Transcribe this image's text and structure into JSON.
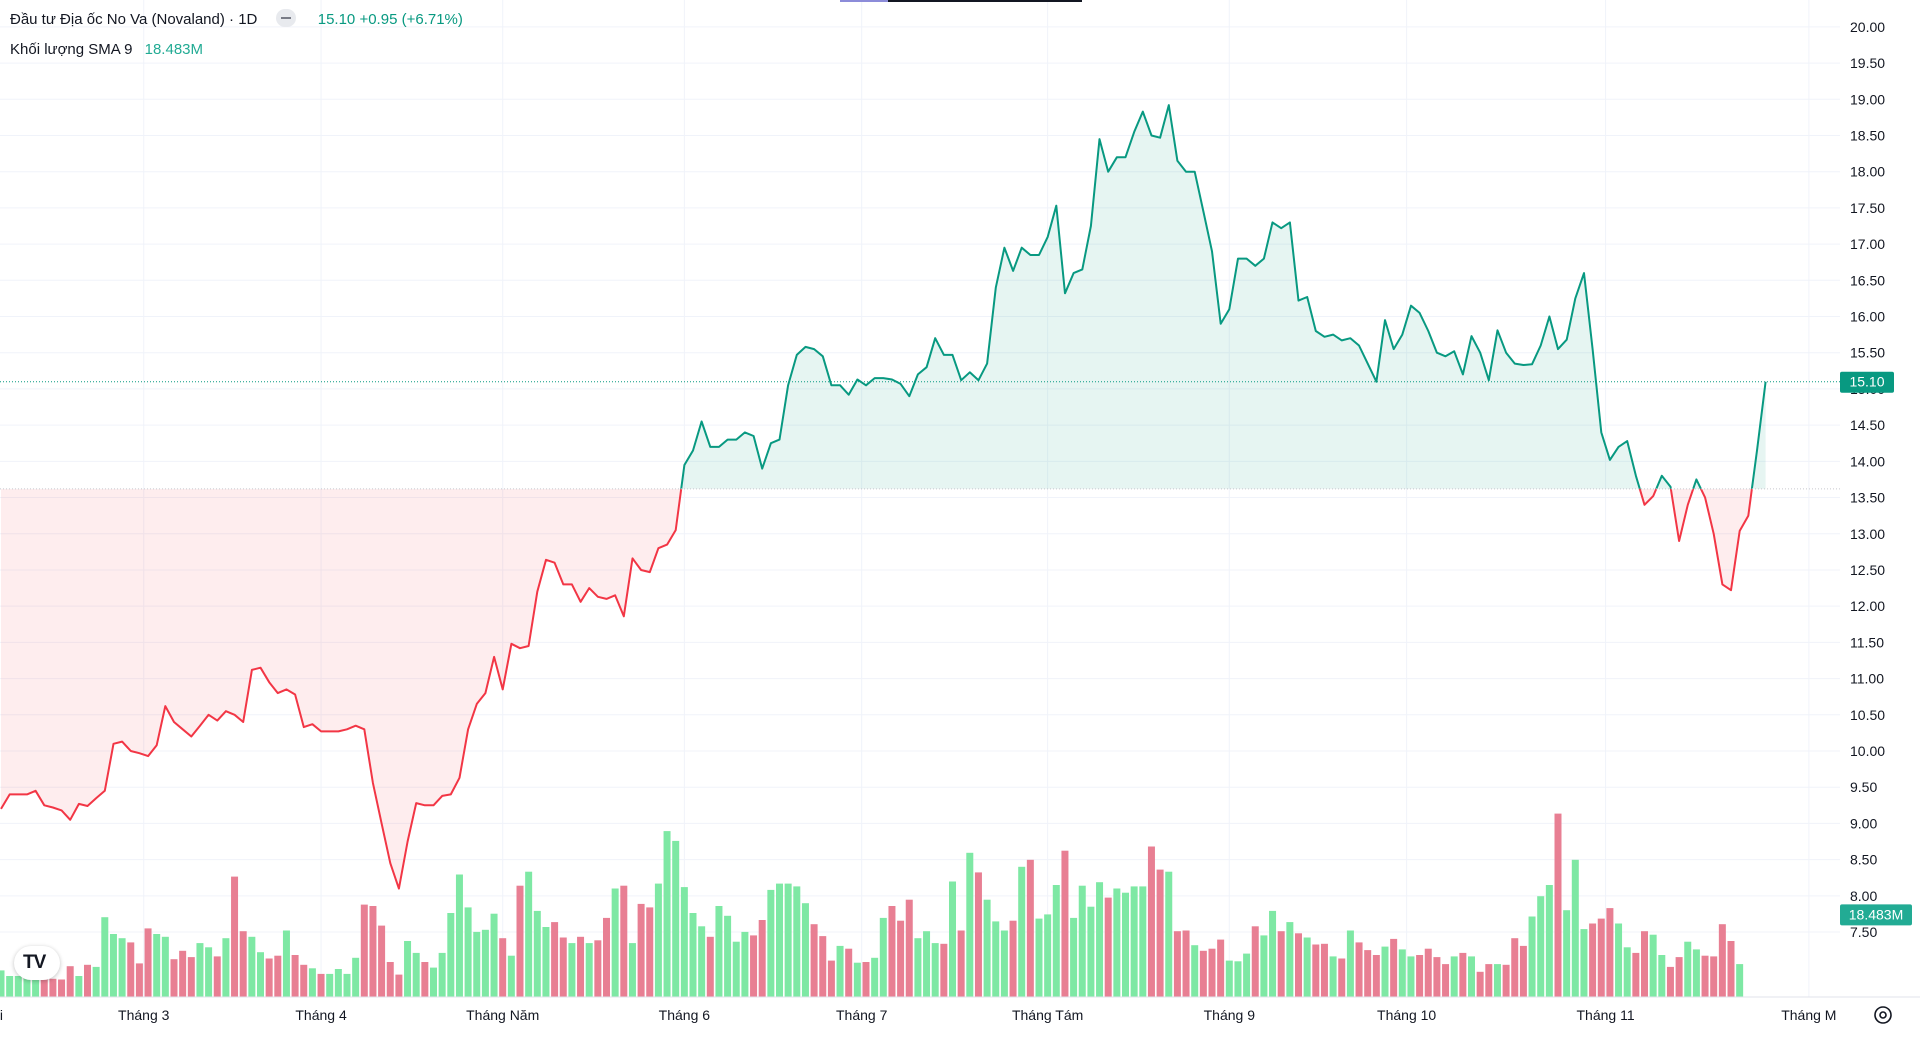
{
  "legend": {
    "symbol": "Đầu tư Địa ốc No Va (Novaland)",
    "interval": "1D",
    "last": "15.10",
    "change": "+0.95",
    "change_pct": "(+6.71%)",
    "volume_label": "Khối lượng SMA 9",
    "volume_sma": "18.483M"
  },
  "price_badge": "15.10",
  "volume_badge": "18.483M",
  "colors": {
    "up_line": "#089981",
    "down_line": "#f23645",
    "vol_up": "#7ee8a4",
    "vol_down": "#e87f93",
    "grid": "#f0f3fa",
    "badge_price": "#089981",
    "badge_vol": "#22ab94"
  },
  "icons": {
    "logo": "tradingview-logo-icon",
    "settings": "gear-icon"
  },
  "chart_data": {
    "type": "area",
    "baseline": 13.62,
    "ylim": [
      7.1,
      20.15
    ],
    "y_ticks": [
      7.5,
      8.0,
      8.5,
      9.0,
      9.5,
      10.0,
      10.5,
      11.0,
      11.5,
      12.0,
      12.5,
      13.0,
      13.5,
      14.0,
      14.5,
      15.0,
      15.5,
      16.0,
      16.5,
      17.0,
      17.5,
      18.0,
      18.5,
      19.0,
      19.5,
      20.0
    ],
    "y_tick_labels": [
      "7.50",
      "8.00",
      "8.50",
      "9.00",
      "9.50",
      "10.00",
      "10.50",
      "11.00",
      "11.50",
      "12.00",
      "12.50",
      "13.00",
      "13.50",
      "14.00",
      "14.50",
      "15.00",
      "15.50",
      "16.00",
      "16.50",
      "17.00",
      "17.50",
      "18.00",
      "18.50",
      "19.00",
      "19.50",
      "20.00"
    ],
    "x_labels": [
      "Tháng Hai",
      "Tháng 3",
      "Tháng 4",
      "Tháng Năm",
      "Tháng 6",
      "Tháng 7",
      "Tháng Tám",
      "Tháng 9",
      "Tháng 10",
      "Tháng 11",
      "Tháng M"
    ],
    "x_label_index": [
      -3.5,
      16.5,
      37,
      58,
      79,
      99.5,
      121,
      142,
      162.5,
      185.5,
      209
    ],
    "price": [
      9.2,
      9.4,
      9.4,
      9.4,
      9.45,
      9.25,
      9.22,
      9.18,
      9.05,
      9.27,
      9.24,
      9.35,
      9.45,
      10.1,
      10.13,
      10.0,
      9.97,
      9.93,
      10.08,
      10.62,
      10.4,
      10.3,
      10.2,
      10.35,
      10.5,
      10.42,
      10.55,
      10.5,
      10.4,
      11.12,
      11.15,
      10.95,
      10.8,
      10.85,
      10.78,
      10.33,
      10.37,
      10.27,
      10.27,
      10.27,
      10.3,
      10.35,
      10.3,
      9.56,
      9.0,
      8.45,
      8.1,
      8.75,
      9.28,
      9.25,
      9.25,
      9.38,
      9.4,
      9.63,
      10.3,
      10.65,
      10.8,
      11.3,
      10.85,
      11.48,
      11.42,
      11.45,
      12.2,
      12.64,
      12.6,
      12.3,
      12.3,
      12.06,
      12.25,
      12.13,
      12.1,
      12.15,
      11.86,
      12.66,
      12.5,
      12.47,
      12.8,
      12.85,
      13.05,
      13.95,
      14.15,
      14.55,
      14.2,
      14.2,
      14.3,
      14.3,
      14.4,
      14.35,
      13.9,
      14.25,
      14.3,
      15.05,
      15.47,
      15.58,
      15.55,
      15.45,
      15.05,
      15.05,
      14.92,
      15.13,
      15.05,
      15.15,
      15.15,
      15.13,
      15.07,
      14.9,
      15.2,
      15.3,
      15.7,
      15.47,
      15.47,
      15.12,
      15.23,
      15.12,
      15.35,
      16.4,
      16.95,
      16.63,
      16.95,
      16.85,
      16.85,
      17.1,
      17.53,
      16.32,
      16.6,
      16.65,
      17.25,
      18.45,
      18.0,
      18.2,
      18.2,
      18.55,
      18.83,
      18.5,
      18.47,
      18.92,
      18.15,
      18.0,
      18.0,
      17.45,
      16.9,
      15.9,
      16.1,
      16.8,
      16.8,
      16.7,
      16.8,
      17.3,
      17.22,
      17.3,
      16.22,
      16.27,
      15.8,
      15.72,
      15.75,
      15.67,
      15.7,
      15.6,
      15.35,
      15.1,
      15.95,
      15.55,
      15.75,
      16.15,
      16.05,
      15.8,
      15.5,
      15.45,
      15.52,
      15.2,
      15.73,
      15.5,
      15.12,
      15.81,
      15.5,
      15.35,
      15.33,
      15.34,
      15.6,
      16.0,
      15.55,
      15.68,
      16.25,
      16.6,
      15.55,
      14.4,
      14.02,
      14.2,
      14.28,
      13.8,
      13.4,
      13.52,
      13.8,
      13.65,
      12.9,
      13.4,
      13.75,
      13.5,
      13.0,
      12.3,
      12.22,
      13.04,
      13.25,
      14.15,
      15.1
    ],
    "volume": [
      0.38,
      0.3,
      0.3,
      0.36,
      0.3,
      0.28,
      0.26,
      0.25,
      0.44,
      0.3,
      0.46,
      0.43,
      1.14,
      0.9,
      0.84,
      0.78,
      0.48,
      0.98,
      0.9,
      0.86,
      0.54,
      0.66,
      0.57,
      0.77,
      0.71,
      0.58,
      0.84,
      1.72,
      0.94,
      0.86,
      0.64,
      0.55,
      0.59,
      0.95,
      0.6,
      0.46,
      0.41,
      0.33,
      0.33,
      0.4,
      0.33,
      0.56,
      1.32,
      1.3,
      1.02,
      0.5,
      0.32,
      0.8,
      0.63,
      0.5,
      0.42,
      0.63,
      1.2,
      1.75,
      1.28,
      0.93,
      0.96,
      1.19,
      0.84,
      0.59,
      1.59,
      1.79,
      1.23,
      1.0,
      1.07,
      0.85,
      0.77,
      0.86,
      0.77,
      0.81,
      1.13,
      1.55,
      1.59,
      0.77,
      1.33,
      1.28,
      1.62,
      2.37,
      2.23,
      1.57,
      1.2,
      1.01,
      0.86,
      1.3,
      1.16,
      0.79,
      0.93,
      0.88,
      1.1,
      1.53,
      1.62,
      1.62,
      1.58,
      1.34,
      1.04,
      0.87,
      0.52,
      0.73,
      0.69,
      0.49,
      0.5,
      0.56,
      1.13,
      1.3,
      1.09,
      1.39,
      0.84,
      0.94,
      0.77,
      0.76,
      1.65,
      0.95,
      2.06,
      1.78,
      1.39,
      1.08,
      0.95,
      1.09,
      1.86,
      1.96,
      1.12,
      1.18,
      1.6,
      2.09,
      1.13,
      1.59,
      1.29,
      1.64,
      1.42,
      1.55,
      1.49,
      1.58,
      1.58,
      2.15,
      1.82,
      1.79,
      0.94,
      0.95,
      0.74,
      0.66,
      0.69,
      0.82,
      0.52,
      0.51,
      0.62,
      1.01,
      0.88,
      1.23,
      0.94,
      1.07,
      0.91,
      0.85,
      0.75,
      0.76,
      0.58,
      0.55,
      0.95,
      0.78,
      0.67,
      0.6,
      0.72,
      0.83,
      0.68,
      0.58,
      0.6,
      0.69,
      0.57,
      0.47,
      0.58,
      0.63,
      0.58,
      0.36,
      0.47,
      0.47,
      0.46,
      0.84,
      0.73,
      1.15,
      1.44,
      1.6,
      2.62,
      1.24,
      1.96,
      0.97,
      1.05,
      1.12,
      1.27,
      1.05,
      0.71,
      0.63,
      0.94,
      0.89,
      0.6,
      0.43,
      0.57,
      0.79,
      0.68,
      0.59,
      0.58,
      1.04,
      0.8,
      0.47
    ]
  }
}
